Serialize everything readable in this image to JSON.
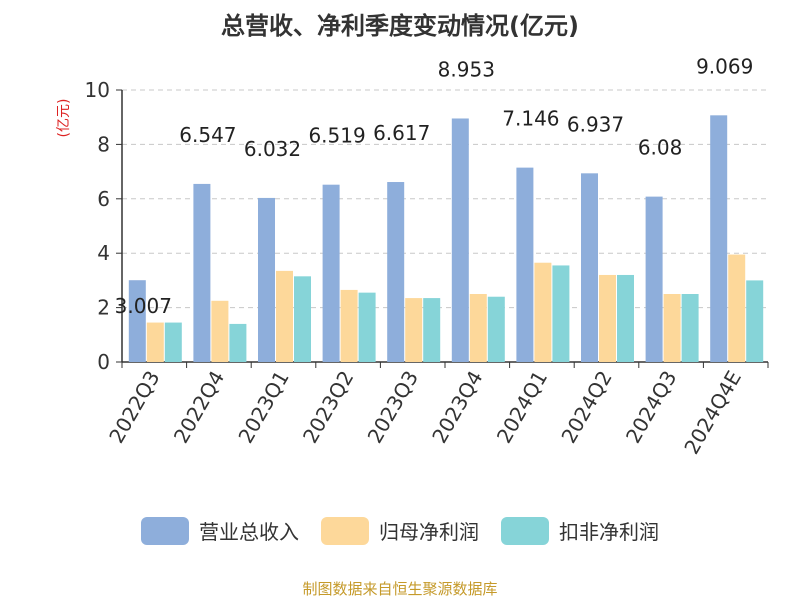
{
  "chart_data": {
    "type": "bar",
    "title": "总营收、净利季度变动情况(亿元)",
    "ylabel": "(亿元)",
    "ylim": [
      0,
      10
    ],
    "yticks": [
      "0",
      "2",
      "4",
      "6",
      "8",
      "10"
    ],
    "grid": true,
    "legend_position": "bottom",
    "categories": [
      "2022Q3",
      "2022Q4",
      "2023Q1",
      "2023Q2",
      "2023Q3",
      "2023Q4",
      "2024Q1",
      "2024Q2",
      "2024Q3",
      "2024Q4E"
    ],
    "series": [
      {
        "name": "营业总收入",
        "color": "#8eaedb",
        "values": [
          3.007,
          6.547,
          6.032,
          6.519,
          6.617,
          8.953,
          7.146,
          6.937,
          6.08,
          9.069
        ]
      },
      {
        "name": "归母净利润",
        "color": "#fdd89a",
        "values": [
          1.45,
          2.25,
          3.35,
          2.65,
          2.35,
          2.5,
          3.65,
          3.2,
          2.5,
          3.95
        ]
      },
      {
        "name": "扣非净利润",
        "color": "#86d4d8",
        "values": [
          1.45,
          1.4,
          3.15,
          2.55,
          2.35,
          2.4,
          3.55,
          3.2,
          2.5,
          3.0
        ]
      }
    ],
    "data_labels": [
      "3.007",
      "6.547",
      "6.032",
      "6.519",
      "6.617",
      "8.953",
      "7.146",
      "6.937",
      "6.08",
      "9.069"
    ]
  },
  "footer": {
    "source": "制图数据来自恒生聚源数据库"
  }
}
